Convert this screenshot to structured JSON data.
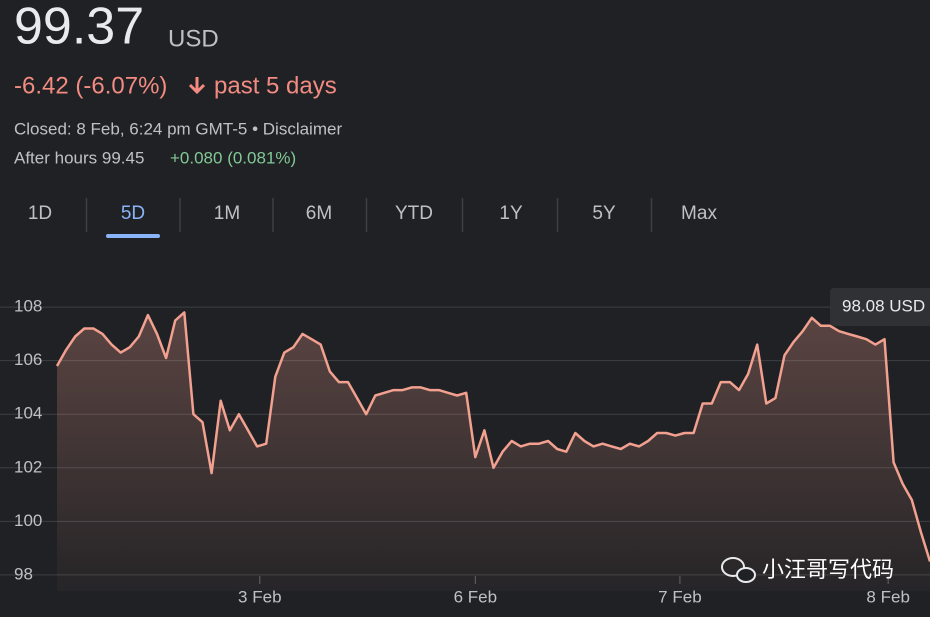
{
  "quote": {
    "price": "99.37",
    "currency": "USD",
    "change": "-6.42 (-6.07%)",
    "period": "past 5 days",
    "closed": "Closed: 8 Feb, 6:24 pm GMT-5 • Disclaimer",
    "after_hours": "After hours 99.45",
    "after_hours_change": "+0.080 (0.081%)"
  },
  "tabs": {
    "items": [
      "1D",
      "5D",
      "1M",
      "6M",
      "YTD",
      "1Y",
      "5Y",
      "Max"
    ],
    "selected": 1
  },
  "watermark": "小汪哥写代码",
  "chart_data": {
    "type": "line",
    "color": "#f2a08f",
    "grid": true,
    "tooltip": "98.08 USD",
    "values": [
      105.8,
      106.4,
      106.9,
      107.2,
      107.2,
      107.0,
      106.6,
      106.3,
      106.5,
      106.9,
      107.7,
      107.0,
      106.1,
      107.5,
      107.8,
      104.0,
      103.7,
      101.8,
      104.5,
      103.4,
      104.0,
      103.4,
      102.8,
      102.9,
      105.4,
      106.3,
      106.5,
      107.0,
      106.8,
      106.6,
      105.6,
      105.2,
      105.2,
      104.6,
      104.0,
      104.7,
      104.8,
      104.9,
      104.9,
      105.0,
      105.0,
      104.9,
      104.9,
      104.8,
      104.7,
      104.8,
      102.4,
      103.4,
      102.0,
      102.6,
      103.0,
      102.8,
      102.9,
      102.9,
      103.0,
      102.7,
      102.6,
      103.3,
      103.0,
      102.8,
      102.9,
      102.8,
      102.7,
      102.9,
      102.8,
      103.0,
      103.3,
      103.3,
      103.2,
      103.3,
      103.3,
      104.4,
      104.4,
      105.2,
      105.2,
      104.9,
      105.5,
      106.6,
      104.4,
      104.6,
      106.2,
      106.7,
      107.1,
      107.6,
      107.3,
      107.3,
      107.1,
      107.0,
      106.9,
      106.8,
      106.6,
      106.8,
      102.2,
      101.4,
      100.8,
      99.6,
      98.5
    ],
    "xlim": [
      0,
      96
    ],
    "xticks": [
      {
        "value": 22.3,
        "label": "3 Feb"
      },
      {
        "value": 46,
        "label": "6 Feb"
      },
      {
        "value": 68.5,
        "label": "7 Feb"
      },
      {
        "value": 91.4,
        "label": "8 Feb"
      }
    ],
    "ylim": [
      97.4,
      108.6
    ],
    "yticks": [
      98,
      100,
      102,
      104,
      106,
      108
    ]
  }
}
